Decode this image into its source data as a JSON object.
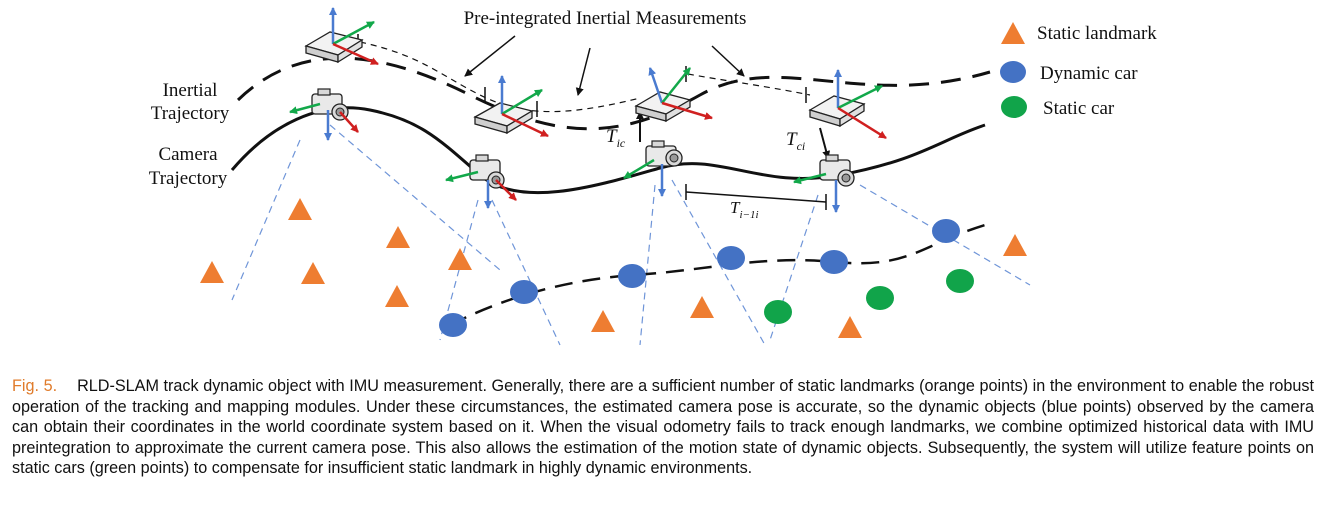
{
  "figure": {
    "title": "Pre-integrated Inertial Measurements",
    "labels": {
      "inertial_trajectory": [
        "Inertial",
        "Trajectory"
      ],
      "camera_trajectory": [
        "Camera",
        "Trajectory"
      ],
      "t_ic": "T",
      "t_ic_sub": "ic",
      "t_ci": "T",
      "t_ci_sub": "ci",
      "t_i1i": "T",
      "t_i1i_sub": "i−1i"
    },
    "legend": [
      {
        "shape": "triangle",
        "color": "#ee7d31",
        "label": "Static landmark"
      },
      {
        "shape": "circle",
        "color": "#4472c4",
        "label": "Dynamic car"
      },
      {
        "shape": "circle",
        "color": "#11a44a",
        "label": "Static car"
      }
    ],
    "colors": {
      "landmark": "#ee7d31",
      "dynamic": "#4472c4",
      "static_car": "#11a44a",
      "axis_up": "#4a7bd0",
      "axis_green": "#12a84a",
      "axis_red": "#d02020",
      "sight_line": "#6f95d8"
    }
  },
  "caption": {
    "label": "Fig. 5.",
    "text": "RLD-SLAM track dynamic object with IMU measurement. Generally, there are a sufficient number of static landmarks (orange points) in the environment to enable the robust operation of the tracking and mapping modules. Under these circumstances, the estimated camera pose is accurate, so the dynamic objects (blue points) observed by the camera can obtain their coordinates in the world coordinate system based on it. When the visual odometry fails to track enough landmarks, we combine optimized historical data with IMU preintegration to approximate the current camera pose. This also allows the estimation of the motion state of dynamic objects. Subsequently, the system will utilize feature points on static cars (green points) to compensate for insufficient static landmark in highly dynamic environments."
  }
}
